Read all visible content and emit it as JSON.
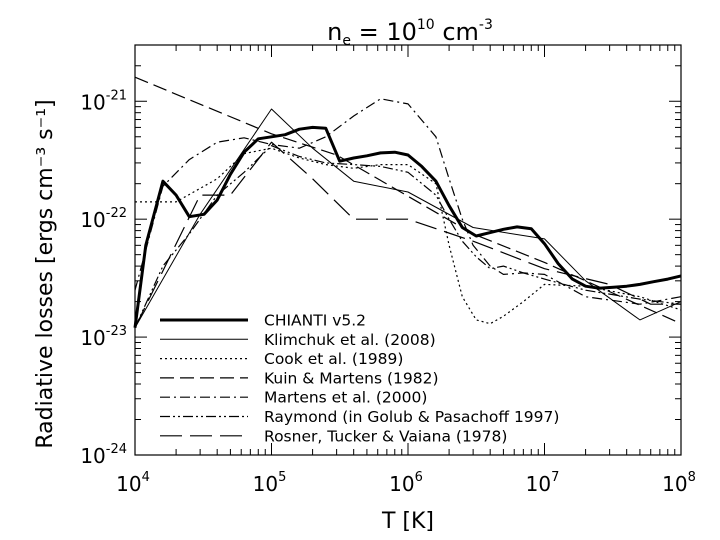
{
  "chart_data": {
    "type": "line",
    "title": "n",
    "title_sub": "e",
    "title_rest": " = 10",
    "title_exp": "10",
    "title_unit": " cm",
    "title_unit_exp": "-3",
    "xlabel": "T [K]",
    "ylabel": "Radiative losses [ergs cm⁻³ s⁻¹]",
    "xscale": "log",
    "yscale": "log",
    "xlim": [
      10000,
      100000000
    ],
    "ylim": [
      1e-24,
      3e-21
    ],
    "x_ticks": [
      {
        "base": "10",
        "exp": "4",
        "value": 10000
      },
      {
        "base": "10",
        "exp": "5",
        "value": 100000
      },
      {
        "base": "10",
        "exp": "6",
        "value": 1000000
      },
      {
        "base": "10",
        "exp": "7",
        "value": 10000000
      },
      {
        "base": "10",
        "exp": "8",
        "value": 100000000
      }
    ],
    "y_ticks": [
      {
        "base": "10",
        "exp": "-24",
        "value": 1e-24
      },
      {
        "base": "10",
        "exp": "-23",
        "value": 1e-23
      },
      {
        "base": "10",
        "exp": "-22",
        "value": 1e-22
      },
      {
        "base": "10",
        "exp": "-21",
        "value": 1e-21
      }
    ],
    "legend_position": "bottom-left",
    "series": [
      {
        "name": "CHIANTI v5.2",
        "dash": "solid",
        "width": 3,
        "x": [
          10000,
          12000,
          16000,
          20000,
          25000,
          32000,
          40000,
          50000,
          63000,
          80000,
          100000,
          126000,
          160000,
          200000,
          250000,
          316000,
          400000,
          500000,
          630000,
          800000,
          1000000,
          1260000,
          1600000,
          2000000,
          2500000,
          3160000,
          4000000,
          5000000,
          6300000,
          8000000,
          10000000,
          12600000,
          16000000,
          20000000,
          25000000,
          32000000,
          40000000,
          50000000,
          63000000,
          80000000,
          100000000
        ],
        "y": [
          1.2e-23,
          6e-23,
          2.1e-22,
          1.6e-22,
          1.05e-22,
          1.1e-22,
          1.45e-22,
          2.4e-22,
          3.7e-22,
          4.8e-22,
          5e-22,
          5.2e-22,
          5.8e-22,
          6e-22,
          5.9e-22,
          3.1e-22,
          3.3e-22,
          3.45e-22,
          3.65e-22,
          3.7e-22,
          3.5e-22,
          2.8e-22,
          2.1e-22,
          1.3e-22,
          8.5e-23,
          7.2e-23,
          7.7e-23,
          8.2e-23,
          8.6e-23,
          8.3e-23,
          6.2e-23,
          4.2e-23,
          3.1e-23,
          2.7e-23,
          2.6e-23,
          2.65e-23,
          2.7e-23,
          2.8e-23,
          2.95e-23,
          3.1e-23,
          3.3e-23
        ]
      },
      {
        "name": "Klimchuk et al. (2008)",
        "dash": "solid",
        "width": 1,
        "x": [
          10000,
          30000,
          100000,
          200000,
          400000,
          1000000,
          3000000,
          10000000,
          20000000,
          50000000,
          100000000
        ],
        "y": [
          1.2e-23,
          1.1e-22,
          8.6e-22,
          4e-22,
          2.1e-22,
          1.7e-22,
          8.5e-23,
          6.8e-23,
          3e-23,
          1.4e-23,
          2e-23
        ]
      },
      {
        "name": "Cook et al. (1989)",
        "dash": "dotted",
        "width": 1.2,
        "x": [
          10000,
          20000,
          40000,
          63000,
          100000,
          160000,
          250000,
          400000,
          630000,
          1000000,
          1600000,
          2000000,
          2500000,
          3160000,
          4000000,
          5000000,
          7000000,
          10000000,
          20000000,
          50000000,
          100000000
        ],
        "y": [
          1.4e-22,
          1.4e-22,
          2.2e-22,
          3.6e-22,
          4e-22,
          3.3e-22,
          2.9e-22,
          2.7e-22,
          2.9e-22,
          2.9e-22,
          2e-22,
          6e-23,
          2.2e-23,
          1.4e-23,
          1.3e-23,
          1.5e-23,
          2e-23,
          2.8e-23,
          2.7e-23,
          2.2e-23,
          1.7e-23
        ]
      },
      {
        "name": "Kuin & Martens (1982)",
        "dash": "longdash",
        "width": 1.2,
        "x": [
          10000,
          100000,
          300000,
          3000000,
          10000000,
          100000000
        ],
        "y": [
          1.6e-21,
          5.3e-22,
          3.5e-22,
          7.5e-23,
          4.3e-23,
          1.3e-23
        ]
      },
      {
        "name": "Martens et al. (2000)",
        "dash": "dashdot",
        "width": 1.2,
        "x": [
          10000,
          16000,
          25000,
          40000,
          63000,
          100000,
          160000,
          250000,
          400000,
          630000,
          1000000,
          1600000,
          2000000,
          2500000,
          3000000,
          4000000,
          5000000,
          7000000,
          10000000,
          20000000,
          50000000,
          100000000
        ],
        "y": [
          2.5e-23,
          1.9e-22,
          3.2e-22,
          4.5e-22,
          4.9e-22,
          4.3e-22,
          4e-22,
          5e-22,
          7.5e-22,
          1.05e-21,
          9.5e-22,
          5e-22,
          2.2e-22,
          1e-22,
          6e-23,
          4e-23,
          3.4e-23,
          3.5e-23,
          3.4e-23,
          2.2e-23,
          1.9e-23,
          2.2e-23
        ]
      },
      {
        "name": "Raymond (in Golub & Pasachoff 1997)",
        "dash": "dashdotdot",
        "width": 1.2,
        "x": [
          10000,
          16000,
          25000,
          40000,
          63000,
          100000,
          160000,
          250000,
          400000,
          630000,
          1000000,
          1600000,
          2000000,
          2500000,
          3160000,
          4000000,
          5000000,
          7000000,
          10000000,
          20000000,
          50000000,
          100000000
        ],
        "y": [
          1.2e-23,
          4e-23,
          7.5e-23,
          1.6e-22,
          2.5e-22,
          4.2e-22,
          3.4e-22,
          3e-22,
          2.9e-22,
          2.8e-22,
          2.5e-22,
          1.6e-22,
          1e-22,
          6.5e-23,
          4.8e-23,
          3.8e-23,
          4e-23,
          3.5e-23,
          3.1e-23,
          2.5e-23,
          2.1e-23,
          1.9e-23
        ]
      },
      {
        "name": "Rosner, Tucker & Vaiana (1978)",
        "dash": "verylongdash",
        "width": 1.2,
        "x": [
          10000,
          30000,
          50000,
          100000,
          200000,
          400000,
          1000000,
          3000000,
          10000000,
          30000000,
          60000000,
          100000000
        ],
        "y": [
          1.2e-23,
          1.6e-22,
          1.6e-22,
          4.5e-22,
          2.2e-22,
          1e-22,
          1e-22,
          6.5e-23,
          3.8e-23,
          2.8e-23,
          1.9e-23,
          1.9e-23
        ]
      }
    ]
  }
}
